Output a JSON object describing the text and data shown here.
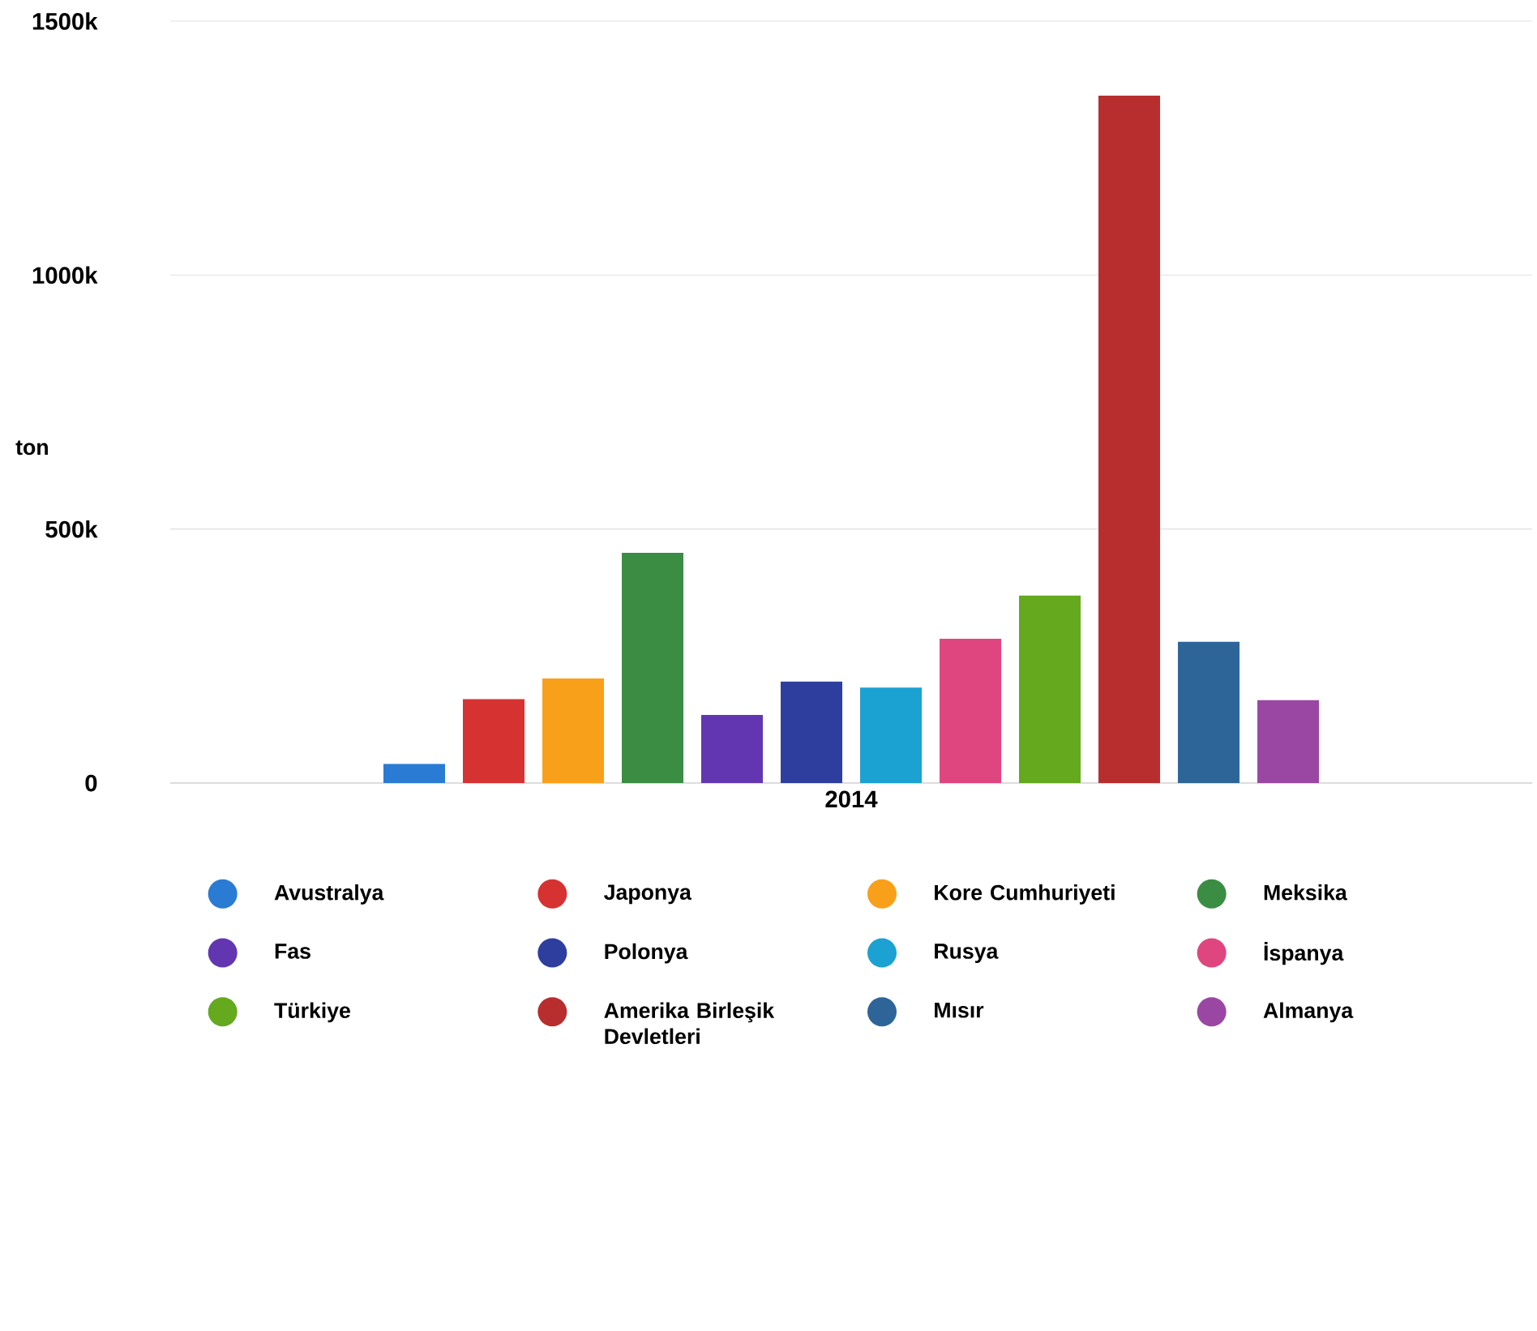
{
  "chart_data": {
    "type": "bar",
    "ylabel": "ton",
    "categories": [
      "2014"
    ],
    "series": [
      {
        "name": "Avustralya",
        "color": "#2a7bd4",
        "values": [
          38000
        ]
      },
      {
        "name": "Japonya",
        "color": "#d63232",
        "values": [
          165000
        ]
      },
      {
        "name": "Kore Cumhuriyeti",
        "color": "#f9a01b",
        "values": [
          206000
        ]
      },
      {
        "name": "Meksika",
        "color": "#3a8d43",
        "values": [
          453000
        ]
      },
      {
        "name": "Fas",
        "color": "#6236b0",
        "values": [
          134000
        ]
      },
      {
        "name": "Polonya",
        "color": "#2e3e9e",
        "values": [
          200000
        ]
      },
      {
        "name": "Rusya",
        "color": "#1ba1d2",
        "values": [
          188000
        ]
      },
      {
        "name": "İspanya",
        "color": "#df4680",
        "values": [
          284000
        ]
      },
      {
        "name": "Türkiye",
        "color": "#64a91e",
        "values": [
          369000
        ]
      },
      {
        "name": "Amerika Birleşik Devletleri",
        "color": "#b82e2e",
        "values": [
          1353000
        ]
      },
      {
        "name": "Mısır",
        "color": "#2e6599",
        "values": [
          278000
        ]
      },
      {
        "name": "Almanya",
        "color": "#9a47a3",
        "values": [
          163000
        ]
      }
    ],
    "ylim": [
      0,
      1500000
    ],
    "yticks": [
      {
        "value": 0,
        "label": "0"
      },
      {
        "value": 500000,
        "label": "500k"
      },
      {
        "value": 1000000,
        "label": "1000k"
      },
      {
        "value": 1500000,
        "label": "1500k"
      }
    ],
    "grid": "y",
    "legend": "bottom"
  }
}
